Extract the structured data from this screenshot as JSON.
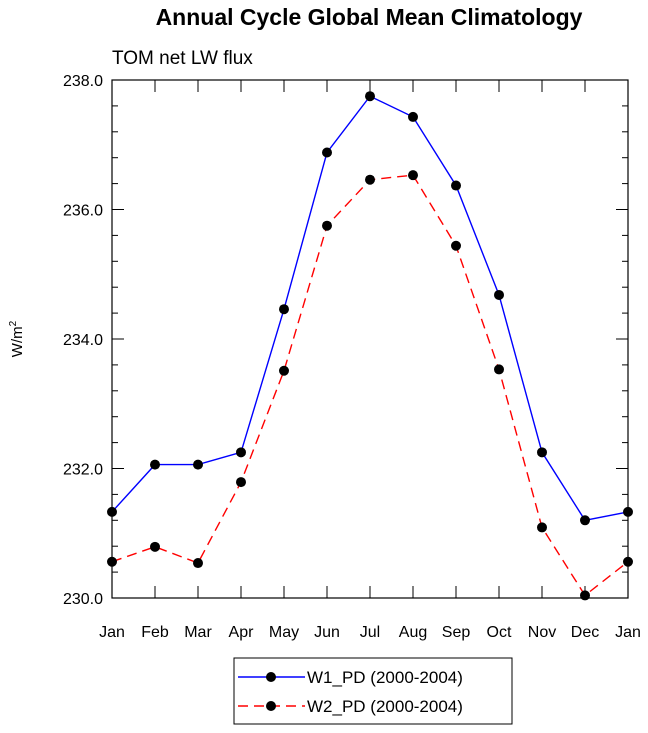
{
  "chart_data": {
    "type": "line",
    "title": "Annual Cycle Global Mean Climatology",
    "subtitle": "TOM net LW flux",
    "xlabel": "",
    "ylabel": "W/m",
    "ylabel_superscript": "2",
    "categories": [
      "Jan",
      "Feb",
      "Mar",
      "Apr",
      "May",
      "Jun",
      "Jul",
      "Aug",
      "Sep",
      "Oct",
      "Nov",
      "Dec",
      "Jan"
    ],
    "ylim": [
      230.0,
      238.0
    ],
    "y_ticks": [
      "230.0",
      "232.0",
      "234.0",
      "236.0",
      "238.0"
    ],
    "y_tick_values": [
      230,
      232,
      234,
      236,
      238
    ],
    "series": [
      {
        "name": "W1_PD (2000-2004)",
        "color": "#0000ff",
        "style": "solid",
        "values": [
          231.33,
          232.06,
          232.06,
          232.25,
          234.46,
          236.88,
          237.75,
          237.43,
          236.37,
          234.68,
          232.25,
          231.2,
          231.33
        ]
      },
      {
        "name": "W2_PD (2000-2004)",
        "color": "#ff0000",
        "style": "dashed",
        "values": [
          230.56,
          230.79,
          230.54,
          231.79,
          233.51,
          235.75,
          236.46,
          236.53,
          235.44,
          233.53,
          231.09,
          230.04,
          230.56
        ]
      }
    ],
    "grid": false,
    "legend_position": "bottom-center",
    "marker_color": "#000000"
  }
}
